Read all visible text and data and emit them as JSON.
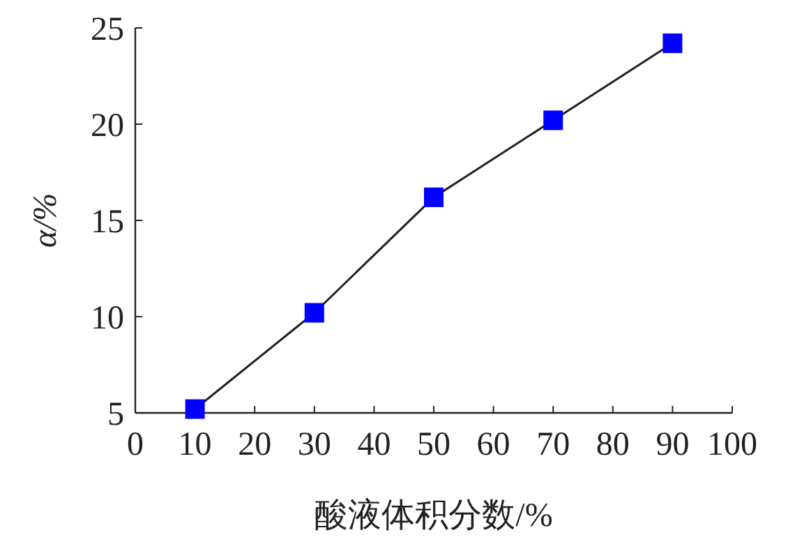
{
  "chart_data": {
    "type": "line",
    "xlabel": "酸液体积分数/%",
    "ylabel": "α/%",
    "x": [
      10,
      30,
      50,
      70,
      90
    ],
    "series": [
      {
        "color": "#0000ff",
        "values": [
          5.2,
          10.2,
          16.2,
          20.2,
          24.2
        ]
      }
    ],
    "xlim": [
      0,
      100
    ],
    "xticks": [
      0,
      10,
      20,
      30,
      40,
      50,
      60,
      70,
      80,
      90,
      100
    ],
    "ylim": [
      5,
      25
    ],
    "yticks": [
      5,
      10,
      15,
      20,
      25
    ],
    "marker": "square",
    "line_style": "solid",
    "grid": false
  }
}
